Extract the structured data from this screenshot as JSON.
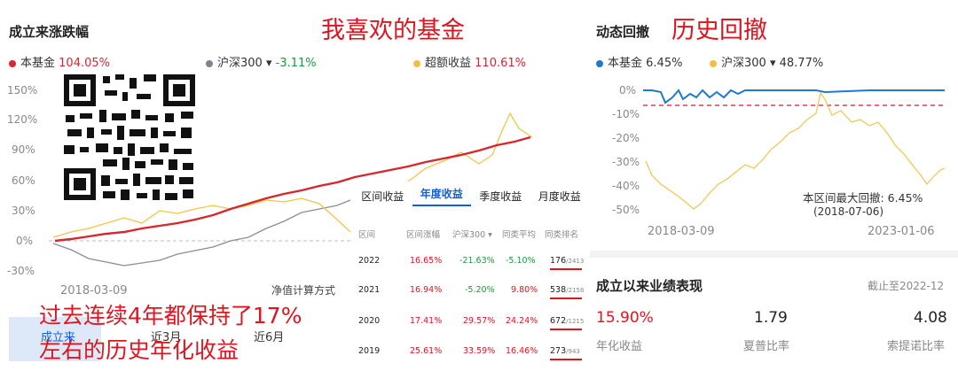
{
  "left_panel": {
    "title": "成立来涨跌幅",
    "legend": [
      {
        "name": "本基金",
        "value": "104.05%",
        "color": "#d7262e",
        "value_color": "#d7262e"
      },
      {
        "name": "沪深300 ▾",
        "value": "-3.11%",
        "color": "#7f8290",
        "value_color": "#1a9a3a"
      },
      {
        "name": "超额收益",
        "value": "110.61%",
        "color": "#f0c040",
        "value_color": "#d7262e"
      }
    ],
    "y_ticks": [
      "150%",
      "120%",
      "90%",
      "60%",
      "30%",
      "0%",
      "-30%"
    ],
    "start_date": "2018-03-09",
    "calc_method": "净值计算方式",
    "range_tabs": [
      "成立来",
      "近3月",
      "近6月"
    ]
  },
  "header_red": "我喜欢的基金",
  "table": {
    "tabs": [
      "区间收益",
      "年度收益",
      "季度收益",
      "月度收益"
    ],
    "columns": [
      "区间",
      "区间涨幅",
      "沪深300 ▾",
      "同类平均",
      "同类排名"
    ],
    "rows": [
      {
        "year": "2022",
        "fund": "16.65%",
        "hs300": "-21.63%",
        "avg": "-5.10%",
        "rank": "176",
        "total": "/2413"
      },
      {
        "year": "2021",
        "fund": "16.94%",
        "hs300": "-5.20%",
        "avg": "9.80%",
        "rank": "538",
        "total": "/2158"
      },
      {
        "year": "2020",
        "fund": "17.41%",
        "hs300": "29.57%",
        "avg": "24.24%",
        "rank": "672",
        "total": "/1215"
      },
      {
        "year": "2019",
        "fund": "25.61%",
        "hs300": "33.59%",
        "avg": "16.46%",
        "rank": "273",
        "total": "/943"
      }
    ]
  },
  "right_panel": {
    "title": "动态回撤",
    "title_red": "历史回撤",
    "legend": [
      {
        "name": "本基金",
        "value": "6.45%",
        "color": "#1f78d1"
      },
      {
        "name": "沪深300 ▾",
        "value": "48.77%",
        "color": "#f0c040"
      }
    ],
    "y_ticks": [
      "0%",
      "-10%",
      "-20%",
      "-30%",
      "-40%",
      "-50%"
    ],
    "max_dd_label": "本区间最大回撤: 6.45%",
    "max_dd_date": "(2018-07-06)",
    "start_date": "2018-03-09",
    "end_date": "2023-01-06"
  },
  "performance": {
    "title": "成立以来业绩表现",
    "as_of": "截止至2022-12",
    "metrics": [
      {
        "value": "15.90%",
        "label": "年化收益",
        "color": "#e0141e"
      },
      {
        "value": "1.79",
        "label": "夏普比率",
        "color": "#222"
      },
      {
        "value": "4.08",
        "label": "索提诺比率",
        "color": "#222"
      }
    ]
  },
  "overlay": {
    "line1": "过去连续4年都保持了17%",
    "line2": "左右的历史年化收益"
  }
}
